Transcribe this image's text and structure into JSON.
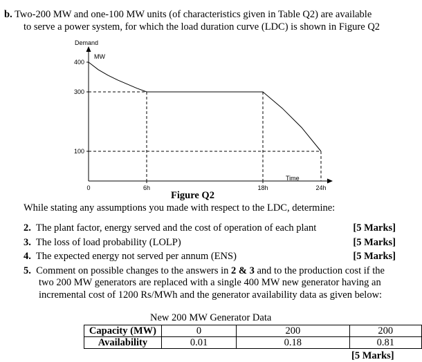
{
  "question": {
    "label": "b.",
    "line1": "Two-200 MW and one-100 MW units (of characteristics given in Table Q2) are available",
    "line2": "to serve a power system, for which the load duration curve (LDC) is shown in Figure Q2"
  },
  "figure": {
    "caption": "Figure Q2",
    "demand_label": "Demand",
    "mw_label": "MW",
    "time_label": "Time",
    "y_ticks": [
      "400",
      "300",
      "100"
    ],
    "x_ticks": [
      "0",
      "6h",
      "18h",
      "24h"
    ]
  },
  "chart_data": {
    "type": "line",
    "title": "Figure Q2",
    "xlabel": "Time",
    "ylabel": "Demand MW",
    "x_ticks": [
      "0",
      "6h",
      "18h",
      "24h"
    ],
    "y_ticks": [
      "400",
      "300",
      "100"
    ],
    "series": [
      {
        "x": [
          0,
          1,
          2,
          3,
          4,
          5,
          6,
          18,
          20,
          22,
          24
        ],
        "y": [
          400,
          375,
          356,
          340,
          326,
          312,
          300,
          300,
          245,
          180,
          100
        ]
      }
    ],
    "reference_lines": {
      "y": [
        300,
        100
      ],
      "x": [
        6,
        18
      ]
    }
  },
  "intro": "While stating any assumptions you made with respect to the LDC, determine:",
  "items": [
    {
      "num": "2.",
      "text": "The plant factor, energy served and the cost of operation of each plant",
      "marks": "[5 Marks]"
    },
    {
      "num": "3.",
      "text": "The loss of load probability (LOLP)",
      "marks": "[5 Marks]"
    },
    {
      "num": "4.",
      "text": "The expected energy not served per annum (ENS)",
      "marks": "[5 Marks]"
    },
    {
      "num": "5.",
      "line1": "Comment on possible changes to the answers in",
      "bold1": "2",
      "amp": " & ",
      "bold2": "3",
      "line1b": " and to the production cost if the",
      "line2": "two 200 MW generators are replaced with a single 400 MW new generator having an",
      "line3": "incremental cost of 1200 Rs/MWh and the generator availability data as given below:"
    }
  ],
  "table": {
    "title": "New 200 MW Generator Data",
    "rows": [
      {
        "header": "Capacity (MW)",
        "cells": [
          "0",
          "200",
          "200"
        ]
      },
      {
        "header": "Availability",
        "cells": [
          "0.01",
          "0.18",
          "0.81"
        ]
      }
    ]
  },
  "final_marks": "[5 Marks]"
}
